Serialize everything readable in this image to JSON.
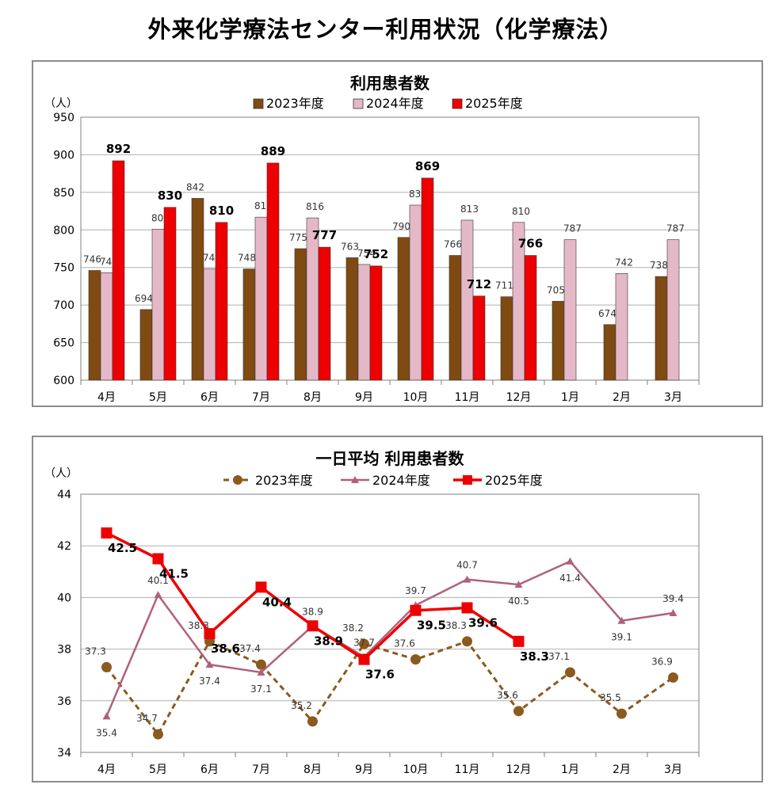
{
  "page_title": "外来化学療法センター利用状況（化学療法）",
  "colors": {
    "bar_2023": "#7f4b12",
    "bar_2024": "#e5b8c8",
    "bar_2025": "#ee0000",
    "line_2023": "#8b5a1e",
    "line_2024": "#b0607e",
    "line_2025": "#ee0000",
    "grid": "#b0b0b0"
  },
  "chart_data": [
    {
      "type": "bar",
      "title": "利用患者数",
      "unit_label": "（人）",
      "categories": [
        "4月",
        "5月",
        "6月",
        "7月",
        "8月",
        "9月",
        "10月",
        "11月",
        "12月",
        "1月",
        "2月",
        "3月"
      ],
      "ylim": [
        600,
        950
      ],
      "yticks": [
        600,
        650,
        700,
        750,
        800,
        850,
        900,
        950
      ],
      "grid": true,
      "legend_position": "top",
      "series": [
        {
          "name": "2023年度",
          "values": [
            746,
            694,
            842,
            748,
            775,
            763,
            790,
            766,
            711,
            705,
            674,
            738
          ]
        },
        {
          "name": "2024年度",
          "values": [
            743,
            801,
            748,
            817,
            816,
            754,
            833,
            813,
            810,
            787,
            742,
            787
          ]
        },
        {
          "name": "2025年度",
          "values": [
            892,
            830,
            810,
            889,
            777,
            752,
            869,
            712,
            766,
            null,
            null,
            null
          ]
        }
      ]
    },
    {
      "type": "line",
      "title": "一日平均 利用患者数",
      "unit_label": "（人）",
      "categories": [
        "4月",
        "5月",
        "6月",
        "7月",
        "8月",
        "9月",
        "10月",
        "11月",
        "12月",
        "1月",
        "2月",
        "3月"
      ],
      "ylim": [
        34,
        44
      ],
      "yticks": [
        34,
        36,
        38,
        40,
        42,
        44
      ],
      "grid": true,
      "legend_position": "top",
      "series": [
        {
          "name": "2023年度",
          "values": [
            37.3,
            34.7,
            38.3,
            37.4,
            35.2,
            38.2,
            37.6,
            38.3,
            35.6,
            37.1,
            35.5,
            36.9
          ]
        },
        {
          "name": "2024年度",
          "values": [
            35.4,
            40.1,
            37.4,
            37.1,
            38.9,
            37.7,
            39.7,
            40.7,
            40.5,
            41.4,
            39.1,
            39.4
          ]
        },
        {
          "name": "2025年度",
          "values": [
            42.5,
            41.5,
            38.6,
            40.4,
            38.9,
            37.6,
            39.5,
            39.6,
            38.3,
            null,
            null,
            null
          ]
        }
      ]
    }
  ]
}
